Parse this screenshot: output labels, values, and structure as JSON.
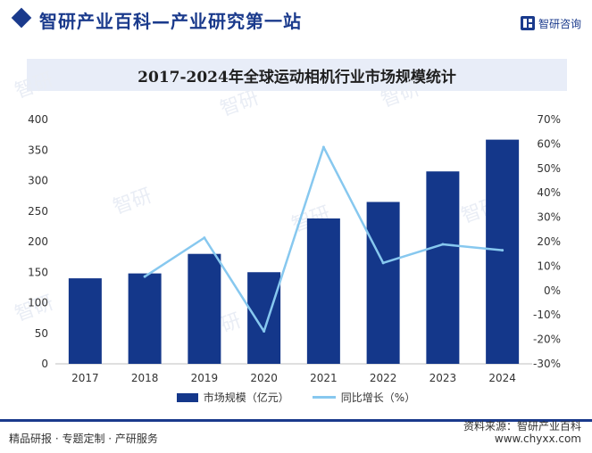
{
  "header": {
    "title": "智研产业百科—产业研究第一站",
    "logo_text": "智研咨询"
  },
  "colors": {
    "brand": "#1a3a8c",
    "bar": "#14378a",
    "line": "#87c8ef"
  },
  "chart_data": {
    "type": "bar+line",
    "title": "2017-2024年全球运动相机行业市场规模统计",
    "categories": [
      "2017",
      "2018",
      "2019",
      "2020",
      "2021",
      "2022",
      "2023",
      "2024"
    ],
    "series": [
      {
        "name": "市场规模（亿元）",
        "type": "bar",
        "axis": "left",
        "values": [
          140,
          148,
          180,
          150,
          238,
          265,
          315,
          367
        ]
      },
      {
        "name": "同比增长（%）",
        "type": "line",
        "axis": "right",
        "values": [
          null,
          5.7,
          21.6,
          -16.7,
          58.7,
          11.3,
          18.9,
          16.5
        ]
      }
    ],
    "left_axis": {
      "min": 0,
      "max": 400,
      "ticks": [
        "0",
        "50",
        "100",
        "150",
        "200",
        "250",
        "300",
        "350",
        "400"
      ]
    },
    "right_axis": {
      "min": -30,
      "max": 70,
      "ticks": [
        "-30%",
        "-20%",
        "-10%",
        "0%",
        "10%",
        "20%",
        "30%",
        "40%",
        "50%",
        "60%",
        "70%"
      ]
    },
    "legend_position": "bottom-center"
  },
  "footer": {
    "left": "精品研报 · 专题定制 · 产研服务",
    "source": "资料来源：智研产业百科",
    "url": "www.chyxx.com"
  }
}
